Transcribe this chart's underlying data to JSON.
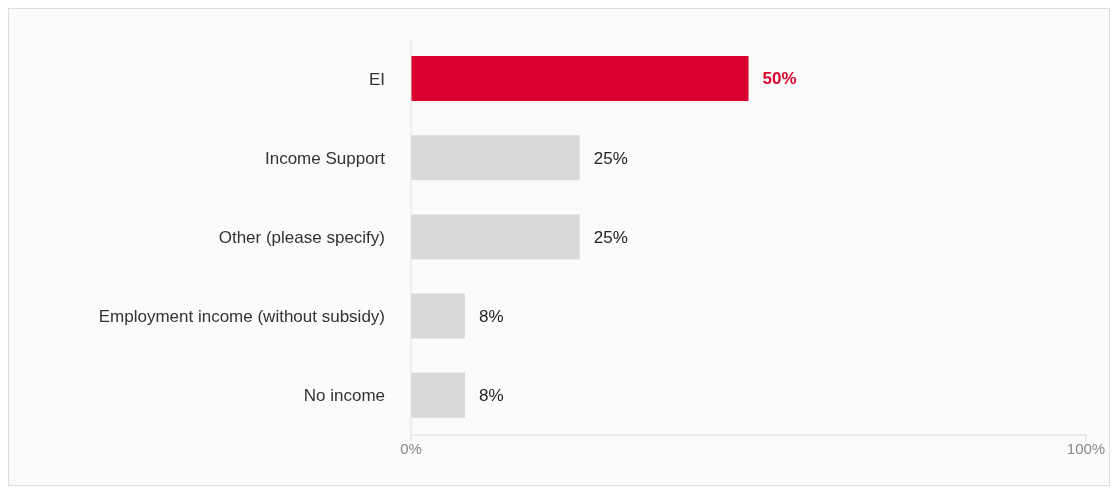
{
  "chart_data": {
    "type": "bar",
    "orientation": "horizontal",
    "categories": [
      "EI",
      "Income Support",
      "Other (please specify)",
      "Employment income (without subsidy)",
      "No income"
    ],
    "values": [
      50,
      25,
      25,
      8,
      8
    ],
    "colors": [
      "#d9002e",
      "#d9d9d9",
      "#d9d9d9",
      "#d9d9d9",
      "#d9d9d9"
    ],
    "value_labels": [
      "50%",
      "25%",
      "25%",
      "8%",
      "8%"
    ],
    "xlim": [
      0,
      100
    ],
    "xticks": [
      {
        "value": 0,
        "label": "0%"
      },
      {
        "value": 100,
        "label": "100%"
      }
    ],
    "grid": false
  }
}
